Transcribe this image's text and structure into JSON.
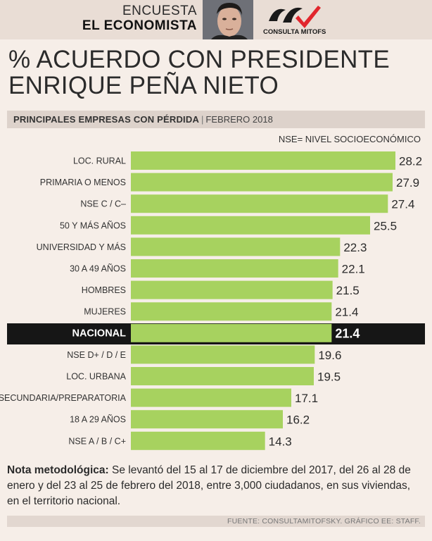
{
  "header": {
    "line1": "ENCUESTA",
    "line2": "EL ECONOMISTA",
    "logo_text": "CONSULTA MITOFSKY"
  },
  "title_line1": "% ACUERDO CON PRESIDENTE",
  "title_line2": "ENRIQUE PEÑA NIETO",
  "subtitle": {
    "label": "PRINCIPALES EMPRESAS CON PÉRDIDA",
    "separator": "|",
    "date": "FEBRERO 2018"
  },
  "nse_note": "NSE= NIVEL SOCIOECONÓMICO",
  "colors": {
    "bar": "#a7d25f",
    "highlight_band": "#161616",
    "background": "#f6eee8"
  },
  "chart_data": {
    "type": "bar",
    "orientation": "horizontal",
    "title": "% ACUERDO CON PRESIDENTE ENRIQUE PEÑA NIETO",
    "xlim": [
      0,
      28.2
    ],
    "highlight": "NACIONAL",
    "categories": [
      "LOC. RURAL",
      "PRIMARIA O MENOS",
      "NSE C / C–",
      "50 Y MÁS AÑOS",
      "UNIVERSIDAD Y MÁS",
      "30 A 49 AÑOS",
      "HOMBRES",
      "MUJERES",
      "NACIONAL",
      "NSE D+ / D / E",
      "LOC. URBANA",
      "SECUNDARIA/PREPARATORIA",
      "18 A 29 AÑOS",
      "NSE A / B / C+"
    ],
    "values": [
      28.2,
      27.9,
      27.4,
      25.5,
      22.3,
      22.1,
      21.5,
      21.4,
      21.4,
      19.6,
      19.5,
      17.1,
      16.2,
      14.3
    ],
    "value_labels": [
      "28.2",
      "27.9",
      "27.4",
      "25.5",
      "22.3",
      "22.1",
      "21.5",
      "21.4",
      "21.4",
      "19.6",
      "19.5",
      "17.1",
      "16.2",
      "14.3"
    ]
  },
  "note": {
    "label": "Nota metodológica:",
    "text": "Se levantó del 15 al 17 de diciembre del 2017, del 26 al 28 de enero y del 23 al 25 de febrero del 2018, entre 3,000 ciudadanos, en sus viviendas, en el territorio nacional."
  },
  "footer": "FUENTE: CONSULTAMITOFSKY. GRÁFICO EE: STAFF."
}
